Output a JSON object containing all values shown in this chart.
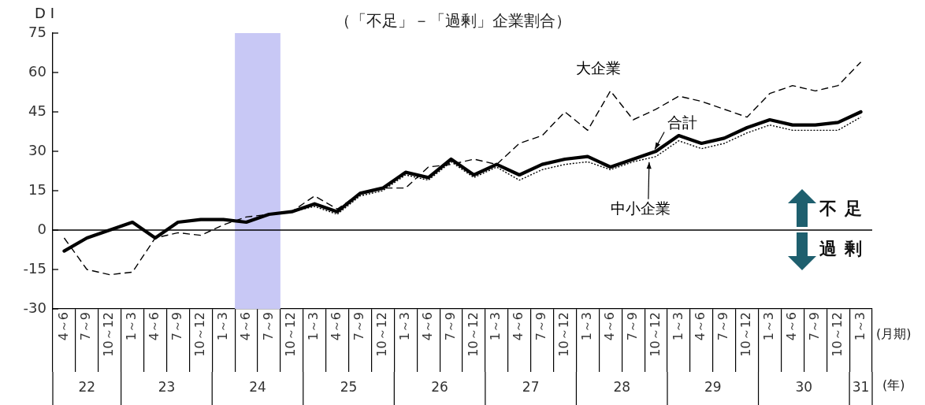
{
  "chart_data": {
    "type": "line",
    "title": "（「不足」－「過剰」企業割合）",
    "ylabel": "D I",
    "xlabel": "(月期)",
    "x2label": "(年)",
    "categories": [
      "4～6",
      "7～9",
      "10～12",
      "1～3",
      "4～6",
      "7～9",
      "10～12",
      "1～3",
      "4～6",
      "7～9",
      "10～12",
      "1～3",
      "4～6",
      "7～9",
      "10～12",
      "1～3",
      "4～6",
      "7～9",
      "10～12",
      "1～3",
      "4～6",
      "7～9",
      "10～12",
      "1～3",
      "4～6",
      "7～9",
      "10～12",
      "1～3",
      "4～6",
      "7～9",
      "10～12",
      "1～3",
      "4～6",
      "7～9",
      "10～12",
      "1～3"
    ],
    "series": [
      {
        "name": "合計",
        "color": "#000000",
        "line_style": "solid",
        "values": [
          -8,
          -3,
          0,
          3,
          -3,
          3,
          4,
          4,
          3,
          6,
          7,
          10,
          7,
          14,
          16,
          22,
          20,
          27,
          21,
          25,
          21,
          25,
          27,
          28,
          24,
          27,
          30,
          36,
          33,
          35,
          39,
          42,
          40,
          40,
          41,
          45
        ]
      },
      {
        "name": "大企業",
        "color": "#000000",
        "line_style": "dashed",
        "values": [
          -3,
          -15,
          -17,
          -16,
          -3,
          -1,
          -2,
          2,
          5,
          6,
          7,
          13,
          8,
          14,
          16,
          16,
          24,
          25,
          27,
          25,
          33,
          36,
          45,
          38,
          53,
          42,
          46,
          51,
          49,
          46,
          43,
          52,
          55,
          53,
          55,
          64
        ]
      },
      {
        "name": "中小企業",
        "color": "#000000",
        "line_style": "dotted",
        "values": [
          -8,
          -3,
          0,
          3,
          -3,
          3,
          4,
          4,
          3,
          6,
          7,
          9,
          6,
          13,
          15,
          21,
          19,
          26,
          20,
          24,
          19,
          23,
          25,
          26,
          23,
          26,
          28,
          34,
          31,
          33,
          37,
          40,
          38,
          38,
          38,
          43
        ]
      }
    ],
    "ylim": [
      -30,
      75
    ],
    "yticks": [
      -30,
      -15,
      0,
      15,
      30,
      45,
      60,
      75
    ],
    "x2lim": [
      21.75,
      30.75
    ],
    "x2ticks": [
      {
        "value": 22.125,
        "label": "22"
      },
      23,
      24,
      25,
      26,
      27,
      28,
      29,
      30,
      {
        "value": 30.625,
        "label": "31"
      }
    ],
    "bands": [
      {
        "axis": "x2",
        "from": 23.75,
        "to": 24.25,
        "color": "#c8c8f5"
      }
    ],
    "ref_lines": [
      {
        "axis": "y",
        "value": 0,
        "color": "#000000"
      }
    ],
    "annotations": [
      "不足",
      "過剰"
    ],
    "grid": false,
    "legend": false,
    "marker": "none"
  }
}
